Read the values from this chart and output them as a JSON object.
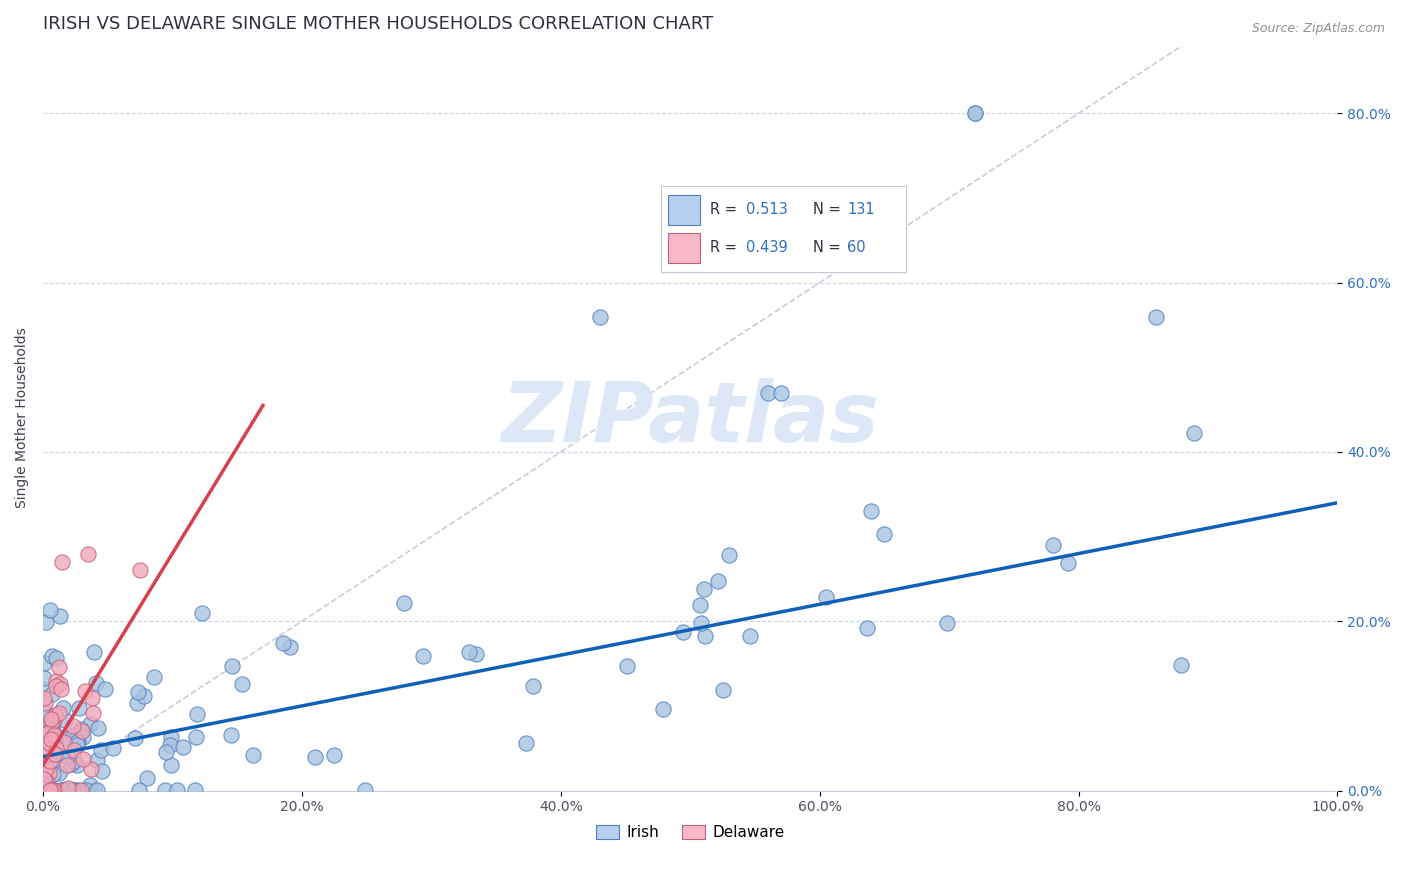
{
  "title": "IRISH VS DELAWARE SINGLE MOTHER HOUSEHOLDS CORRELATION CHART",
  "source": "Source: ZipAtlas.com",
  "ylabel": "Single Mother Households",
  "xlim": [
    0.0,
    1.0
  ],
  "ylim": [
    0.0,
    0.88
  ],
  "xticks": [
    0.0,
    0.2,
    0.4,
    0.6,
    0.8,
    1.0
  ],
  "yticks": [
    0.0,
    0.2,
    0.4,
    0.6,
    0.8
  ],
  "xticklabels": [
    "0.0%",
    "20.0%",
    "40.0%",
    "60.0%",
    "80.0%",
    "100.0%"
  ],
  "yticklabels": [
    "0.0%",
    "20.0%",
    "40.0%",
    "60.0%",
    "80.0%"
  ],
  "irish_R": 0.513,
  "irish_N": 131,
  "delaware_R": 0.439,
  "delaware_N": 60,
  "irish_color": "#a8c4e0",
  "delaware_color": "#f0a8b8",
  "irish_line_color": "#1060b8",
  "delaware_line_color": "#d84050",
  "background_color": "#ffffff",
  "title_fontsize": 13,
  "legend_box_color_irish": "#b8d0f0",
  "legend_box_color_delaware": "#f8b8c8",
  "grid_color": "#c8d0e0",
  "watermark_color": "#dce8f8",
  "tick_color_y": "#3070c0",
  "tick_color_x": "#505060"
}
